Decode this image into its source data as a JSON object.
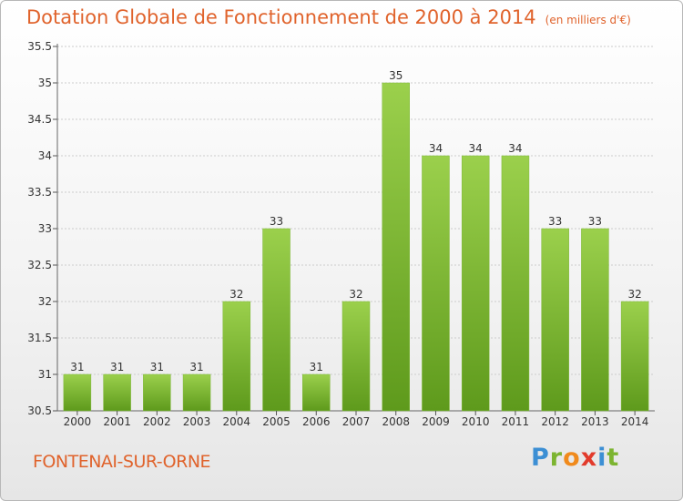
{
  "header": {
    "title": "Dotation Globale de Fonctionnement de 2000 à 2014",
    "subtitle": "(en milliers d'€)"
  },
  "footer": {
    "city": "FONTENAI-SUR-ORNE",
    "logo_text": "Proxiti"
  },
  "colors": {
    "title": "#e0632c",
    "bar_top": "#9bd04c",
    "bar_bottom": "#5e9a1c",
    "grid": "#cccccc"
  },
  "chart_data": {
    "type": "bar",
    "title": "Dotation Globale de Fonctionnement de 2000 à 2014",
    "subtitle": "(en milliers d'€)",
    "categories": [
      "2000",
      "2001",
      "2002",
      "2003",
      "2004",
      "2005",
      "2006",
      "2007",
      "2008",
      "2009",
      "2010",
      "2011",
      "2012",
      "2013",
      "2014"
    ],
    "values": [
      31,
      31,
      31,
      31,
      32,
      33,
      31,
      32,
      35,
      34,
      34,
      34,
      33,
      33,
      32
    ],
    "data_labels": [
      "31",
      "31",
      "31",
      "31",
      "32",
      "33",
      "31",
      "32",
      "35",
      "34",
      "34",
      "34",
      "33",
      "33",
      "32"
    ],
    "yticks": [
      "30.5",
      "31",
      "31.5",
      "32",
      "32.5",
      "33",
      "33.5",
      "34",
      "34.5",
      "35",
      "35.5"
    ],
    "ylim": [
      30.5,
      35.5
    ],
    "grid": true,
    "legend": "none"
  }
}
